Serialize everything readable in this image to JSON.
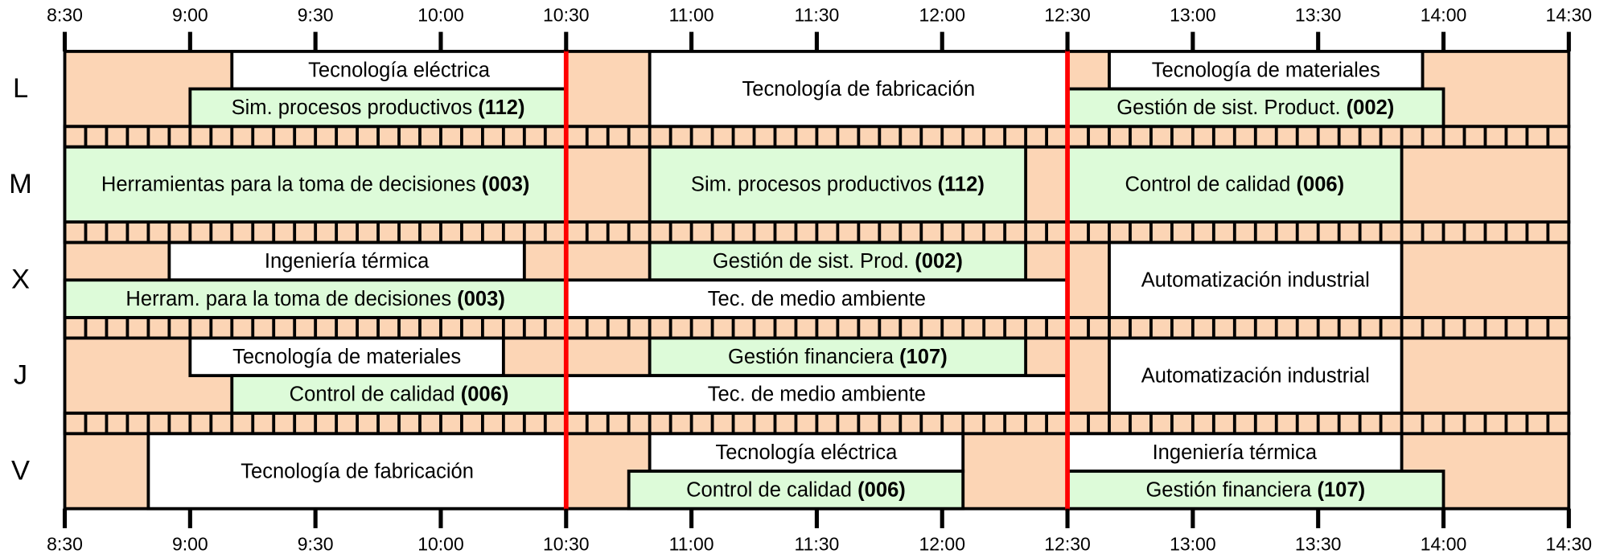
{
  "chart_data": {
    "type": "timetable",
    "xlim": [
      510,
      870
    ],
    "xticks": [
      {
        "value": 510,
        "label": "8:30"
      },
      {
        "value": 540,
        "label": "9:00"
      },
      {
        "value": 570,
        "label": "9:30"
      },
      {
        "value": 600,
        "label": "10:00"
      },
      {
        "value": 630,
        "label": "10:30"
      },
      {
        "value": 660,
        "label": "11:00"
      },
      {
        "value": 690,
        "label": "11:30"
      },
      {
        "value": 720,
        "label": "12:00"
      },
      {
        "value": 750,
        "label": "12:30"
      },
      {
        "value": 780,
        "label": "13:00"
      },
      {
        "value": 810,
        "label": "13:30"
      },
      {
        "value": 840,
        "label": "14:00"
      },
      {
        "value": 870,
        "label": "14:30"
      }
    ],
    "highlight_lines": [
      630,
      750
    ],
    "highlight_color": "#ff0000",
    "free_color": "#fcd5b5",
    "days": [
      {
        "label": "L",
        "sessions": [
          {
            "name": "Tecnología eléctrica",
            "start": 550,
            "end": 630,
            "slot": "top",
            "color": "#ffffff"
          },
          {
            "name": "Sim. procesos productivos",
            "code": "(112)",
            "start": 540,
            "end": 630,
            "slot": "bottom",
            "color": "#ddfbd9"
          },
          {
            "name": "Tecnología de fabricación",
            "start": 650,
            "end": 750,
            "slot": "full",
            "color": "#ffffff"
          },
          {
            "name": "Tecnología de materiales",
            "start": 760,
            "end": 835,
            "slot": "top",
            "color": "#ffffff"
          },
          {
            "name": "Gestión de sist. Product.",
            "code": "(002)",
            "start": 750,
            "end": 840,
            "slot": "bottom",
            "color": "#ddfbd9"
          }
        ]
      },
      {
        "label": "M",
        "sessions": [
          {
            "name": "Herramientas para la toma de decisiones",
            "code": "(003)",
            "start": 510,
            "end": 630,
            "slot": "full",
            "color": "#ddfbd9"
          },
          {
            "name": "Sim. procesos productivos",
            "code": "(112)",
            "start": 650,
            "end": 740,
            "slot": "full",
            "color": "#ddfbd9"
          },
          {
            "name": "Control de calidad",
            "code": "(006)",
            "start": 750,
            "end": 830,
            "slot": "full",
            "color": "#ddfbd9"
          }
        ]
      },
      {
        "label": "X",
        "sessions": [
          {
            "name": "Ingeniería térmica",
            "start": 535,
            "end": 620,
            "slot": "top",
            "color": "#ffffff"
          },
          {
            "name": "Gestión de sist. Prod.",
            "code": "(002)",
            "start": 650,
            "end": 740,
            "slot": "top",
            "color": "#ddfbd9"
          },
          {
            "name": "Herram. para la toma de decisiones",
            "code": "(003)",
            "start": 510,
            "end": 630,
            "slot": "bottom",
            "color": "#ddfbd9"
          },
          {
            "name": "Tec. de medio ambiente",
            "start": 630,
            "end": 750,
            "slot": "bottom",
            "color": "#ffffff"
          },
          {
            "name": "Automatización industrial",
            "start": 760,
            "end": 830,
            "slot": "full",
            "color": "#ffffff"
          }
        ]
      },
      {
        "label": "J",
        "sessions": [
          {
            "name": "Tecnología de materiales",
            "start": 540,
            "end": 615,
            "slot": "top",
            "color": "#ffffff"
          },
          {
            "name": "Gestión financiera",
            "code": "(107)",
            "start": 650,
            "end": 740,
            "slot": "top",
            "color": "#ddfbd9"
          },
          {
            "name": "Control de calidad",
            "code": "(006)",
            "start": 550,
            "end": 630,
            "slot": "bottom",
            "color": "#ddfbd9"
          },
          {
            "name": "Tec. de medio ambiente",
            "start": 630,
            "end": 750,
            "slot": "bottom",
            "color": "#ffffff"
          },
          {
            "name": "Automatización industrial",
            "start": 760,
            "end": 830,
            "slot": "full",
            "color": "#ffffff"
          }
        ]
      },
      {
        "label": "V",
        "sessions": [
          {
            "name": "Tecnología de fabricación",
            "start": 530,
            "end": 630,
            "slot": "full",
            "color": "#ffffff"
          },
          {
            "name": "Tecnología eléctrica",
            "start": 650,
            "end": 725,
            "slot": "top",
            "color": "#ffffff"
          },
          {
            "name": "Control de calidad",
            "code": "(006)",
            "start": 645,
            "end": 725,
            "slot": "bottom",
            "color": "#ddfbd9"
          },
          {
            "name": "Ingeniería térmica",
            "start": 750,
            "end": 830,
            "slot": "top",
            "color": "#ffffff"
          },
          {
            "name": "Gestión financiera",
            "code": "(107)",
            "start": 750,
            "end": 840,
            "slot": "bottom",
            "color": "#ddfbd9"
          }
        ]
      }
    ]
  }
}
